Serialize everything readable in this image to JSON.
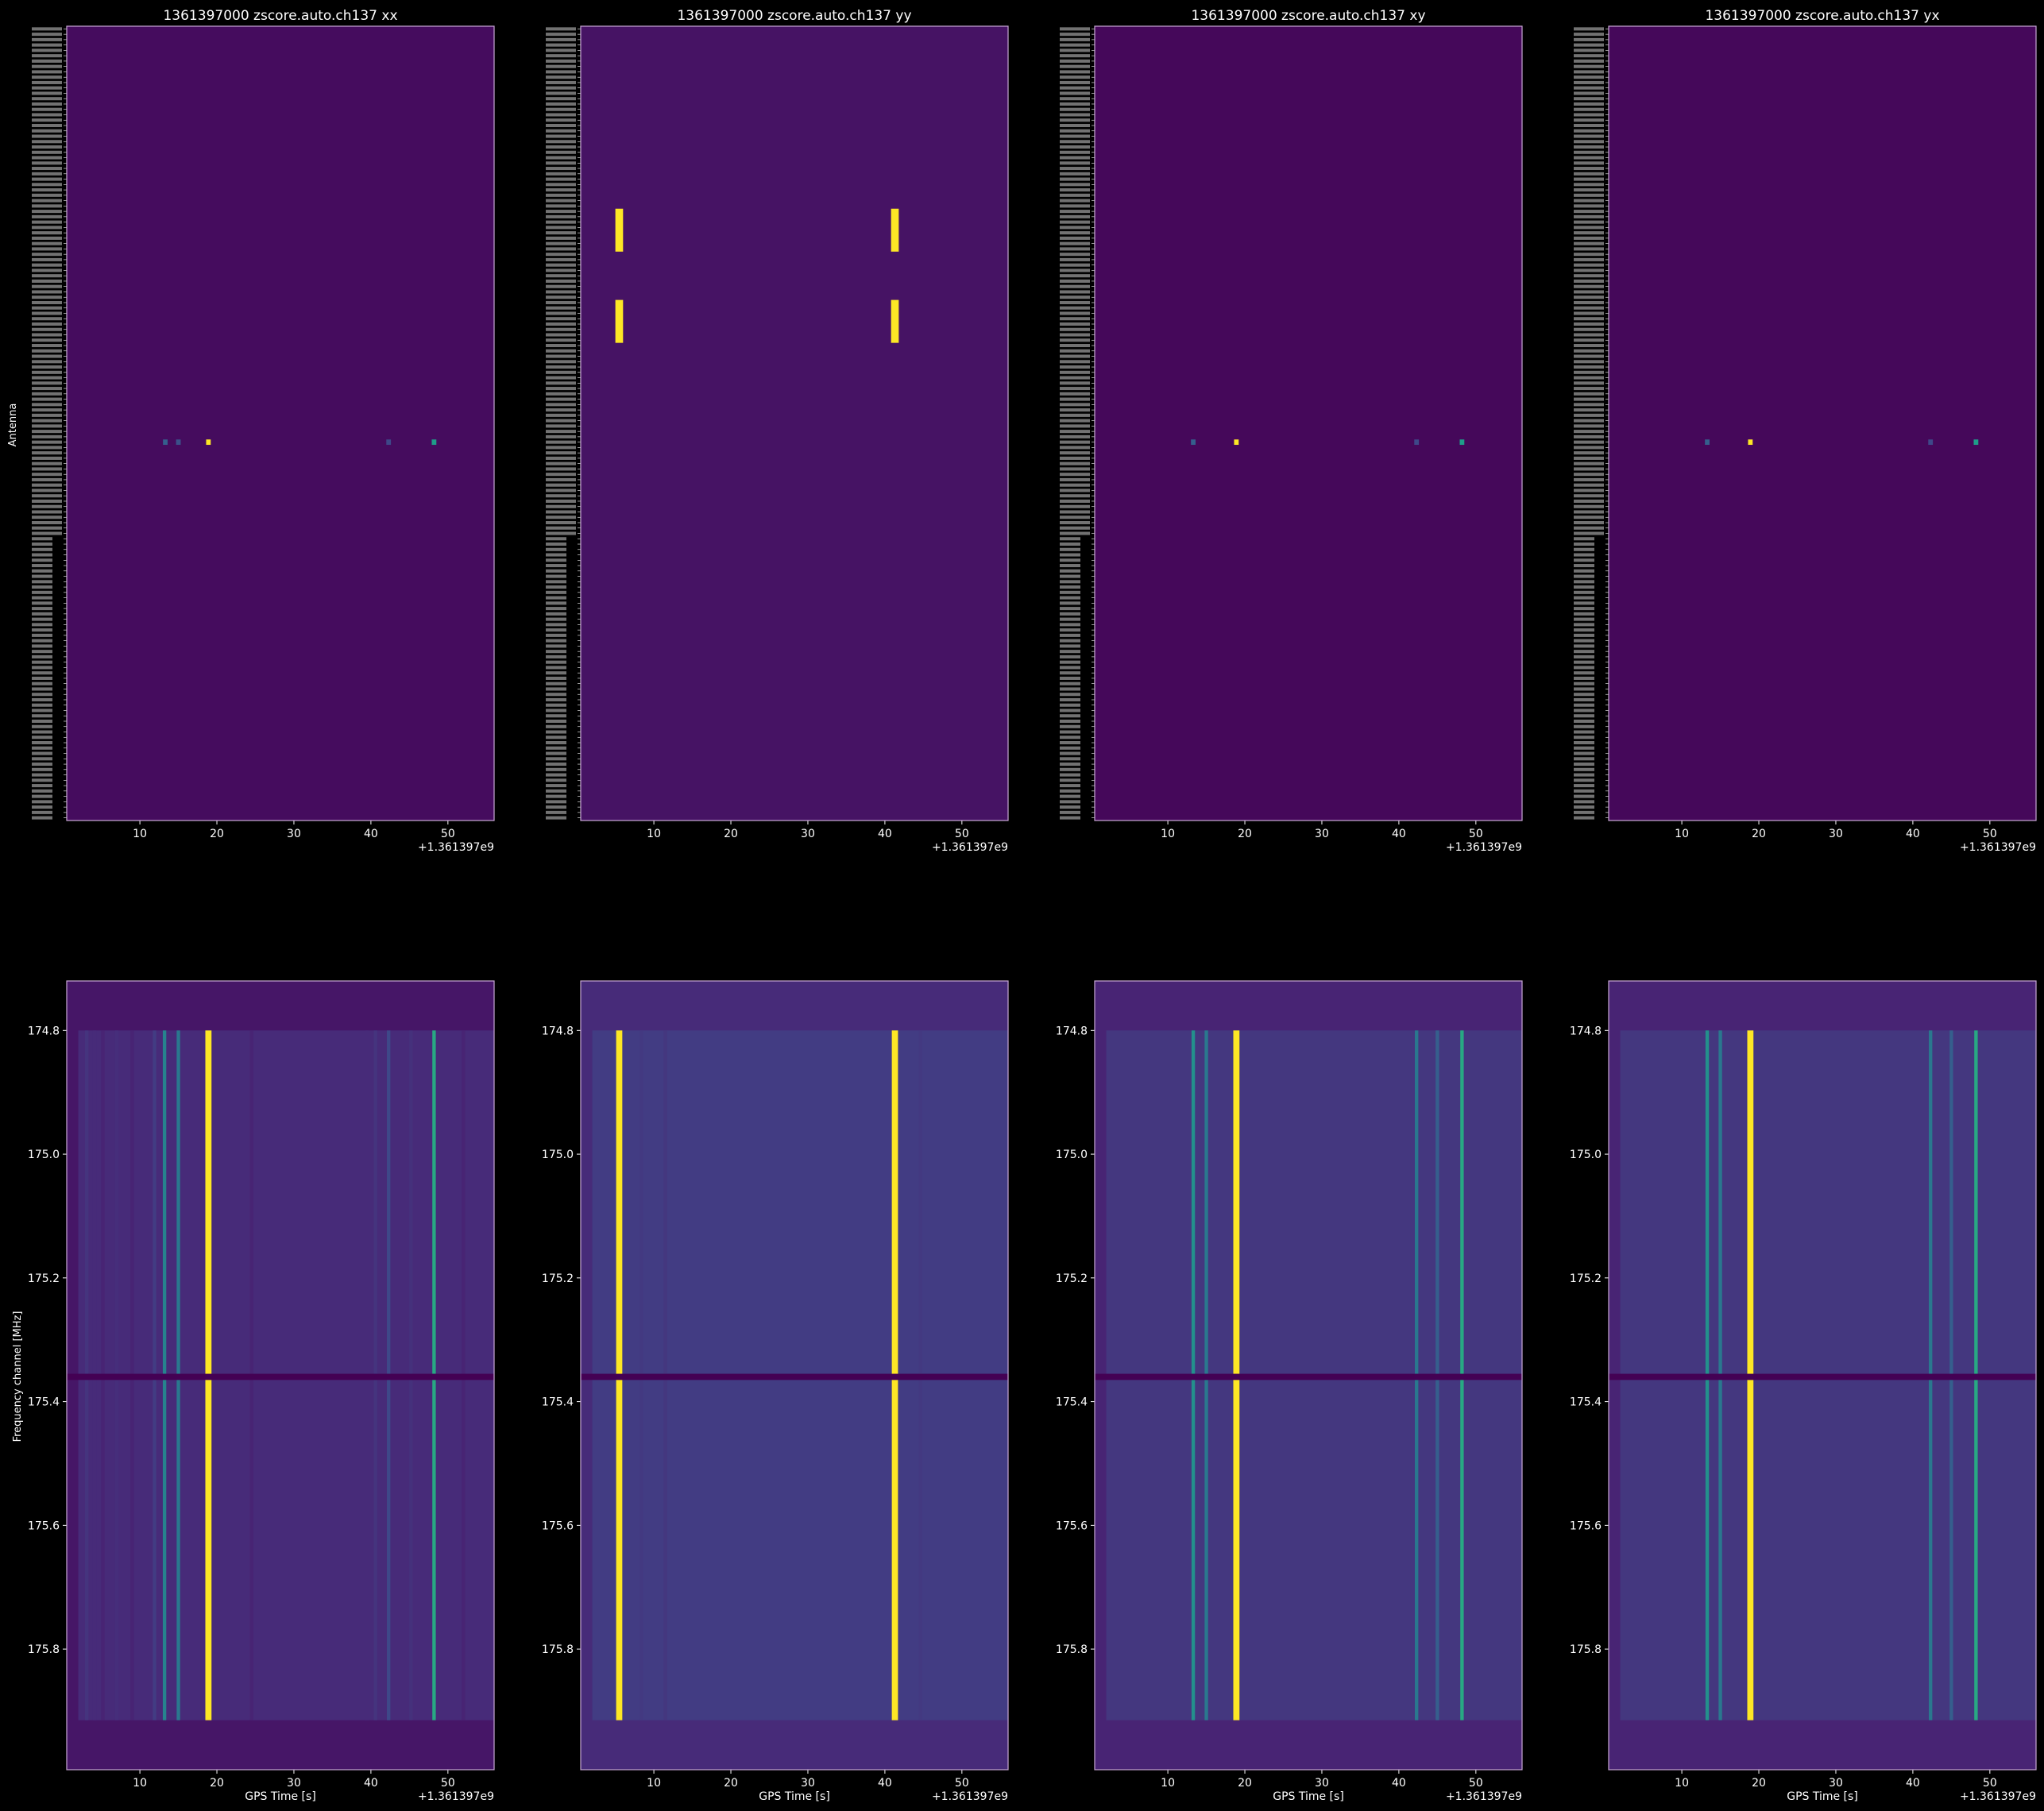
{
  "figure": {
    "background": "#000000",
    "axes_edge_color": "#c9a8d6",
    "antenna_ylabel": "Antenna",
    "freq_ylabel": "Frequency channel [MHz]",
    "time_xlabel": "GPS Time [s]",
    "offset_text": "+1.361397e9",
    "colormap": [
      "#440154",
      "#482878",
      "#3e4989",
      "#31688e",
      "#26828e",
      "#1f9e89",
      "#35b779",
      "#6ece58",
      "#b5de2b",
      "#fde725"
    ]
  },
  "chart_data": [
    {
      "type": "heatmap",
      "panel": "antenna",
      "title": "1361397000 zscore.auto.ch137 xx",
      "xlabel": "",
      "ylabel": "Antenna",
      "xlim": [
        0.5,
        56
      ],
      "xticks": [
        10,
        20,
        30,
        40,
        50
      ],
      "antenna_rows_first": "Tile027",
      "antenna_rows_last": "LBG8",
      "rows": 148,
      "background_value": 0.03,
      "hot_cells": [
        {
          "row_range": [
            77,
            77
          ],
          "t_range": [
            18.6,
            19.2
          ],
          "value": 1.0
        },
        {
          "row_range": [
            77,
            77
          ],
          "t_range": [
            47.9,
            48.5
          ],
          "value": 0.55
        },
        {
          "row_range": [
            77,
            77
          ],
          "t_range": [
            13.0,
            13.6
          ],
          "value": 0.3
        },
        {
          "row_range": [
            77,
            77
          ],
          "t_range": [
            14.7,
            15.3
          ],
          "value": 0.25
        },
        {
          "row_range": [
            77,
            77
          ],
          "t_range": [
            42.0,
            42.6
          ],
          "value": 0.22
        }
      ]
    },
    {
      "type": "heatmap",
      "panel": "antenna",
      "title": "1361397000 zscore.auto.ch137 yy",
      "xlabel": "",
      "ylabel": "",
      "xlim": [
        0.5,
        56
      ],
      "xticks": [
        10,
        20,
        30,
        40,
        50
      ],
      "rows": 148,
      "background_value": 0.05,
      "hot_cells": [
        {
          "row_range": [
            34,
            41
          ],
          "t_range": [
            5.0,
            6.0
          ],
          "value": 1.0
        },
        {
          "row_range": [
            51,
            58
          ],
          "t_range": [
            5.0,
            6.0
          ],
          "value": 1.0
        },
        {
          "row_range": [
            34,
            41
          ],
          "t_range": [
            40.8,
            41.8
          ],
          "value": 1.0
        },
        {
          "row_range": [
            51,
            58
          ],
          "t_range": [
            40.8,
            41.8
          ],
          "value": 1.0
        }
      ]
    },
    {
      "type": "heatmap",
      "panel": "antenna",
      "title": "1361397000 zscore.auto.ch137 xy",
      "xlabel": "",
      "ylabel": "",
      "xlim": [
        0.5,
        56
      ],
      "xticks": [
        10,
        20,
        30,
        40,
        50
      ],
      "rows": 148,
      "background_value": 0.02,
      "hot_cells": [
        {
          "row_range": [
            77,
            77
          ],
          "t_range": [
            18.6,
            19.2
          ],
          "value": 1.0
        },
        {
          "row_range": [
            77,
            77
          ],
          "t_range": [
            47.9,
            48.5
          ],
          "value": 0.55
        },
        {
          "row_range": [
            77,
            77
          ],
          "t_range": [
            13.0,
            13.6
          ],
          "value": 0.3
        },
        {
          "row_range": [
            77,
            77
          ],
          "t_range": [
            42.0,
            42.6
          ],
          "value": 0.22
        }
      ]
    },
    {
      "type": "heatmap",
      "panel": "antenna",
      "title": "1361397000 zscore.auto.ch137 yx",
      "xlabel": "",
      "ylabel": "",
      "xlim": [
        0.5,
        56
      ],
      "xticks": [
        10,
        20,
        30,
        40,
        50
      ],
      "rows": 148,
      "background_value": 0.02,
      "hot_cells": [
        {
          "row_range": [
            77,
            77
          ],
          "t_range": [
            18.6,
            19.2
          ],
          "value": 1.0
        },
        {
          "row_range": [
            77,
            77
          ],
          "t_range": [
            47.9,
            48.5
          ],
          "value": 0.55
        },
        {
          "row_range": [
            77,
            77
          ],
          "t_range": [
            13.0,
            13.6
          ],
          "value": 0.3
        },
        {
          "row_range": [
            77,
            77
          ],
          "t_range": [
            42.0,
            42.6
          ],
          "value": 0.22
        }
      ]
    },
    {
      "type": "heatmap",
      "panel": "frequency",
      "title": "",
      "xlabel": "GPS Time [s]",
      "ylabel": "Frequency channel [MHz]",
      "xlim": [
        0.5,
        56
      ],
      "ylim": [
        174.72,
        175.995
      ],
      "xticks": [
        10,
        20,
        30,
        40,
        50
      ],
      "yticks": [
        174.8,
        175.0,
        175.2,
        175.4,
        175.6,
        175.8
      ],
      "data_band": [
        174.8,
        175.915
      ],
      "gap_band": [
        175.355,
        175.365
      ],
      "data_t_range": [
        2.0,
        56
      ],
      "background_value": 0.06,
      "stripes": [
        {
          "t": 3.1,
          "value": 0.15
        },
        {
          "t": 4.1,
          "value": 0.12
        },
        {
          "t": 5.2,
          "value": 0.1
        },
        {
          "t": 7.0,
          "value": 0.13
        },
        {
          "t": 9.0,
          "value": 0.1
        },
        {
          "t": 11.9,
          "value": 0.18
        },
        {
          "t": 13.2,
          "value": 0.45
        },
        {
          "t": 15.0,
          "value": 0.4
        },
        {
          "t": 18.9,
          "value": 1.0
        },
        {
          "t": 24.5,
          "value": 0.1
        },
        {
          "t": 39.5,
          "value": 0.12
        },
        {
          "t": 40.6,
          "value": 0.15
        },
        {
          "t": 42.3,
          "value": 0.22
        },
        {
          "t": 45.2,
          "value": 0.14
        },
        {
          "t": 48.2,
          "value": 0.6
        },
        {
          "t": 52.0,
          "value": 0.1
        }
      ]
    },
    {
      "type": "heatmap",
      "panel": "frequency",
      "title": "",
      "xlabel": "GPS Time [s]",
      "ylabel": "",
      "xlim": [
        0.5,
        56
      ],
      "ylim": [
        174.72,
        175.995
      ],
      "xticks": [
        10,
        20,
        30,
        40,
        50
      ],
      "yticks": [
        174.8,
        175.0,
        175.2,
        175.4,
        175.6,
        175.8
      ],
      "data_band": [
        174.8,
        175.915
      ],
      "gap_band": [
        175.355,
        175.365
      ],
      "data_t_range": [
        2.0,
        56
      ],
      "background_value": 0.12,
      "stripes": [
        {
          "t": 5.5,
          "value": 1.0
        },
        {
          "t": 41.3,
          "value": 1.0
        },
        {
          "t": 8.4,
          "value": 0.17
        },
        {
          "t": 11.5,
          "value": 0.16
        },
        {
          "t": 44.6,
          "value": 0.17
        }
      ]
    },
    {
      "type": "heatmap",
      "panel": "frequency",
      "title": "",
      "xlabel": "GPS Time [s]",
      "ylabel": "",
      "xlim": [
        0.5,
        56
      ],
      "ylim": [
        174.72,
        175.995
      ],
      "xticks": [
        10,
        20,
        30,
        40,
        50
      ],
      "yticks": [
        174.8,
        175.0,
        175.2,
        175.4,
        175.6,
        175.8
      ],
      "data_band": [
        174.8,
        175.915
      ],
      "gap_band": [
        175.355,
        175.365
      ],
      "data_t_range": [
        2.0,
        56
      ],
      "background_value": 0.1,
      "stripes": [
        {
          "t": 13.3,
          "value": 0.5
        },
        {
          "t": 15.0,
          "value": 0.4
        },
        {
          "t": 18.9,
          "value": 1.0
        },
        {
          "t": 42.3,
          "value": 0.4
        },
        {
          "t": 45.0,
          "value": 0.3
        },
        {
          "t": 48.2,
          "value": 0.6
        }
      ]
    },
    {
      "type": "heatmap",
      "panel": "frequency",
      "title": "",
      "xlabel": "GPS Time [s]",
      "ylabel": "",
      "xlim": [
        0.5,
        56
      ],
      "ylim": [
        174.72,
        175.995
      ],
      "xticks": [
        10,
        20,
        30,
        40,
        50
      ],
      "yticks": [
        174.8,
        175.0,
        175.2,
        175.4,
        175.6,
        175.8
      ],
      "data_band": [
        174.8,
        175.915
      ],
      "gap_band": [
        175.355,
        175.365
      ],
      "data_t_range": [
        2.0,
        56
      ],
      "background_value": 0.1,
      "stripes": [
        {
          "t": 13.3,
          "value": 0.5
        },
        {
          "t": 15.0,
          "value": 0.4
        },
        {
          "t": 18.9,
          "value": 1.0
        },
        {
          "t": 42.3,
          "value": 0.4
        },
        {
          "t": 45.0,
          "value": 0.3
        },
        {
          "t": 48.2,
          "value": 0.6
        }
      ]
    }
  ]
}
